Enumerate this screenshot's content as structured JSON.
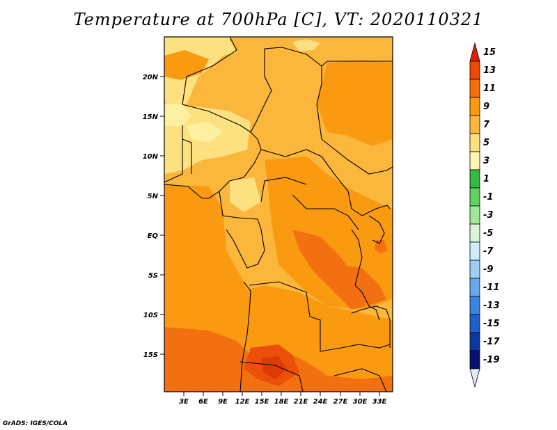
{
  "title": "Temperature at 700hPa [C], VT: 2020110321",
  "footer": "GrADS: IGES/COLA",
  "map": {
    "latitude_labels": [
      "20N",
      "15N",
      "10N",
      "5N",
      "EQ",
      "5S",
      "10S",
      "15S"
    ],
    "longitude_labels": [
      "3E",
      "6E",
      "9E",
      "12E",
      "15E",
      "18E",
      "21E",
      "24E",
      "27E",
      "30E",
      "33E"
    ]
  },
  "colorbar": {
    "labels": [
      "15",
      "13",
      "11",
      "9",
      "7",
      "5",
      "3",
      "1",
      "-1",
      "-3",
      "-5",
      "-7",
      "-9",
      "-11",
      "-13",
      "-15",
      "-17",
      "-19"
    ],
    "colors": [
      "#e02000",
      "#f04800",
      "#f76e08",
      "#fa9a0c",
      "#fbb63c",
      "#fde080",
      "#fdf7b0",
      "#36b844",
      "#60d060",
      "#a0e898",
      "#d8f5d8",
      "#d0ecfa",
      "#9ecdf4",
      "#6aa8ec",
      "#3c84de",
      "#2060c8",
      "#0a3aa0",
      "#081070",
      "#e4e8f8"
    ]
  }
}
